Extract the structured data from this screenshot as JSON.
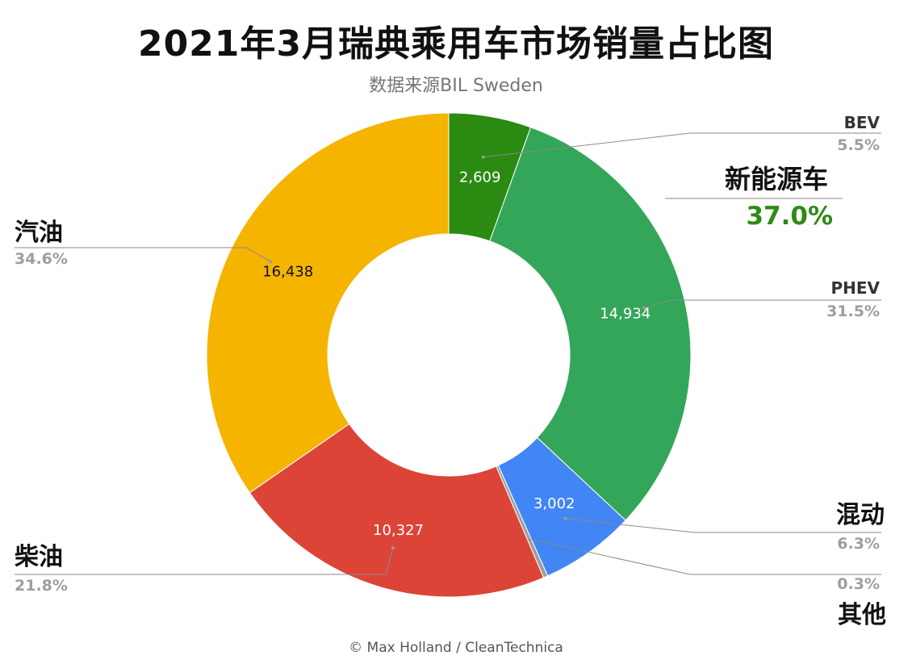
{
  "title": "2021年3月瑞典乘用车市场销量占比图",
  "subtitle": "数据来源BIL Sweden",
  "footer": "© Max Holland / CleanTechnica",
  "chart_data": {
    "type": "pie",
    "donut": true,
    "title": "2021年3月瑞典乘用车市场销量占比图",
    "subtitle": "数据来源BIL Sweden",
    "slices": [
      {
        "label": "BEV",
        "value": 2609,
        "value_label": "2,609",
        "percent_label": "5.5%",
        "color": "#2a8a12",
        "value_text_color": "#ffffff"
      },
      {
        "label": "PHEV",
        "value": 14934,
        "value_label": "14,934",
        "percent_label": "31.5%",
        "color": "#34a65a",
        "value_text_color": "#ffffff"
      },
      {
        "label": "混动",
        "value": 3002,
        "value_label": "3,002",
        "percent_label": "6.3%",
        "color": "#4285f4",
        "value_text_color": "#ffffff"
      },
      {
        "label": "其他",
        "value": 142,
        "value_label": "",
        "percent_label": "0.3%",
        "color": "#9e9e9e",
        "value_text_color": "#ffffff"
      },
      {
        "label": "柴油",
        "value": 10327,
        "value_label": "10,327",
        "percent_label": "21.8%",
        "color": "#db4437",
        "value_text_color": "#ffffff"
      },
      {
        "label": "汽油",
        "value": 16438,
        "value_label": "16,438",
        "percent_label": "34.6%",
        "color": "#f4b400",
        "value_text_color": "#111111"
      }
    ],
    "group_annotation": {
      "label": "新能源车",
      "percent_label": "37.0%",
      "color": "#2e8b14"
    }
  }
}
